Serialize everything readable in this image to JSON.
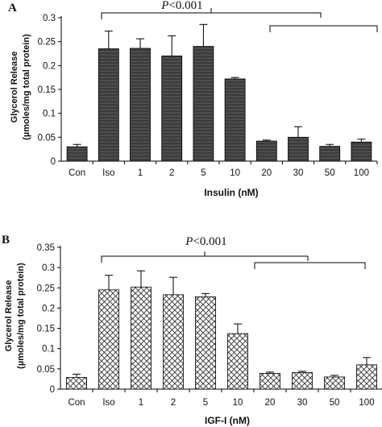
{
  "chart_data": [
    {
      "type": "bar",
      "panel_label": "A",
      "categories": [
        "Con",
        "Iso",
        "1",
        "2",
        "5",
        "10",
        "20",
        "30",
        "50",
        "100"
      ],
      "values": [
        0.03,
        0.235,
        0.236,
        0.22,
        0.24,
        0.172,
        0.042,
        0.05,
        0.031,
        0.04
      ],
      "errors": [
        0.005,
        0.037,
        0.02,
        0.042,
        0.046,
        0.003,
        0.002,
        0.022,
        0.004,
        0.006
      ],
      "ylabel_line1": "Glycerol Release",
      "ylabel_line2": "(µmoles/mg total protein)",
      "xlabel": "Insulin (nM)",
      "yticks": [
        "0",
        "0.05",
        "0.1",
        "0.15",
        "0.2",
        "0.25",
        "0.3"
      ],
      "ylim": [
        0,
        0.3
      ],
      "significance": {
        "p_prefix": "P",
        "p_suffix": "<0.001"
      },
      "bar_style": "dark-striped",
      "bar_color": "#3a3a3a"
    },
    {
      "type": "bar",
      "panel_label": "B",
      "categories": [
        "Con",
        "Iso",
        "1",
        "2",
        "5",
        "10",
        "20",
        "30",
        "50",
        "100"
      ],
      "values": [
        0.029,
        0.245,
        0.252,
        0.233,
        0.228,
        0.137,
        0.039,
        0.041,
        0.03,
        0.06
      ],
      "errors": [
        0.008,
        0.036,
        0.04,
        0.043,
        0.008,
        0.024,
        0.003,
        0.003,
        0.004,
        0.018
      ],
      "ylabel_line1": "Glycerol Release",
      "ylabel_line2": "(µmoles/mg total protein)",
      "xlabel": "IGF-I (nM)",
      "yticks": [
        "0",
        "0.05",
        "0.1",
        "0.15",
        "0.2",
        "0.25",
        "0.3",
        "0.35"
      ],
      "ylim": [
        0,
        0.35
      ],
      "significance": {
        "p_prefix": "P",
        "p_suffix": "<0.001"
      },
      "bar_style": "crosshatch",
      "bar_color": "#333333"
    }
  ]
}
